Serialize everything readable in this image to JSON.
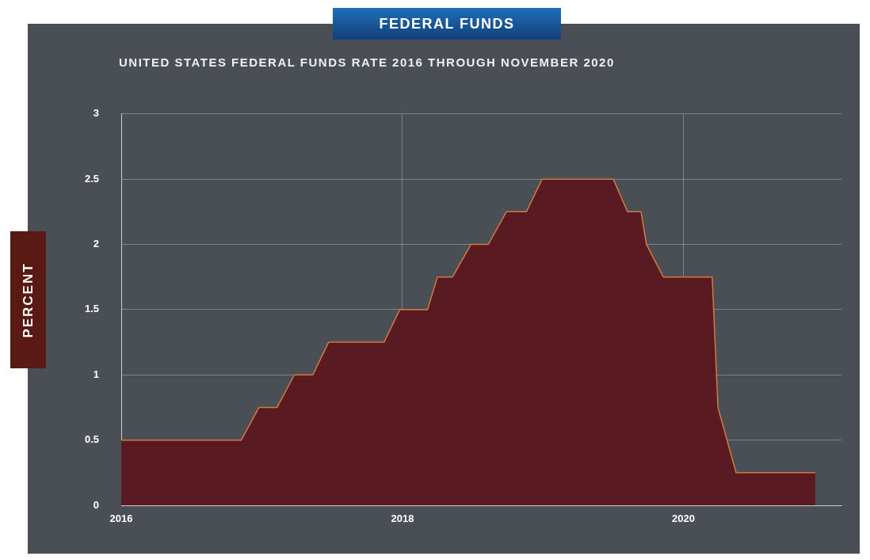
{
  "chart_data": {
    "type": "area",
    "title": "FEDERAL FUNDS",
    "subtitle": "UNITED STATES FEDERAL FUNDS RATE 2016 THROUGH NOVEMBER 2020",
    "ylabel": "PERCENT",
    "x": [
      "2016-01-01",
      "2016-11-08",
      "2016-12-24",
      "2017-02-09",
      "2017-03-26",
      "2017-05-13",
      "2017-06-23",
      "2017-11-14",
      "2017-12-25",
      "2018-03-07",
      "2018-04-02",
      "2018-05-11",
      "2018-06-28",
      "2018-08-12",
      "2018-09-28",
      "2018-11-19",
      "2018-12-30",
      "2019-07-03",
      "2019-08-09",
      "2019-09-13",
      "2019-09-27",
      "2019-11-10",
      "2020-03-16",
      "2020-03-31",
      "2020-05-17",
      "2020-12-09"
    ],
    "series": [
      {
        "color": "#5a1a22",
        "values": [
          0.5,
          0.5,
          0.75,
          0.75,
          1,
          1,
          1.25,
          1.25,
          1.5,
          1.5,
          1.75,
          1.75,
          2,
          2,
          2.25,
          2.25,
          2.5,
          2.5,
          2.25,
          2.25,
          2,
          1.75,
          1.75,
          0.75,
          0.25,
          0.25
        ]
      }
    ],
    "xlim": [
      "2016-01-01",
      "2021-02-15"
    ],
    "xticks": [
      "2016",
      "2018",
      "2020"
    ],
    "ylim": [
      0,
      3
    ],
    "yticks": [
      0,
      0.5,
      1,
      1.5,
      2,
      2.5,
      3
    ],
    "grid": true,
    "legend": false
  }
}
